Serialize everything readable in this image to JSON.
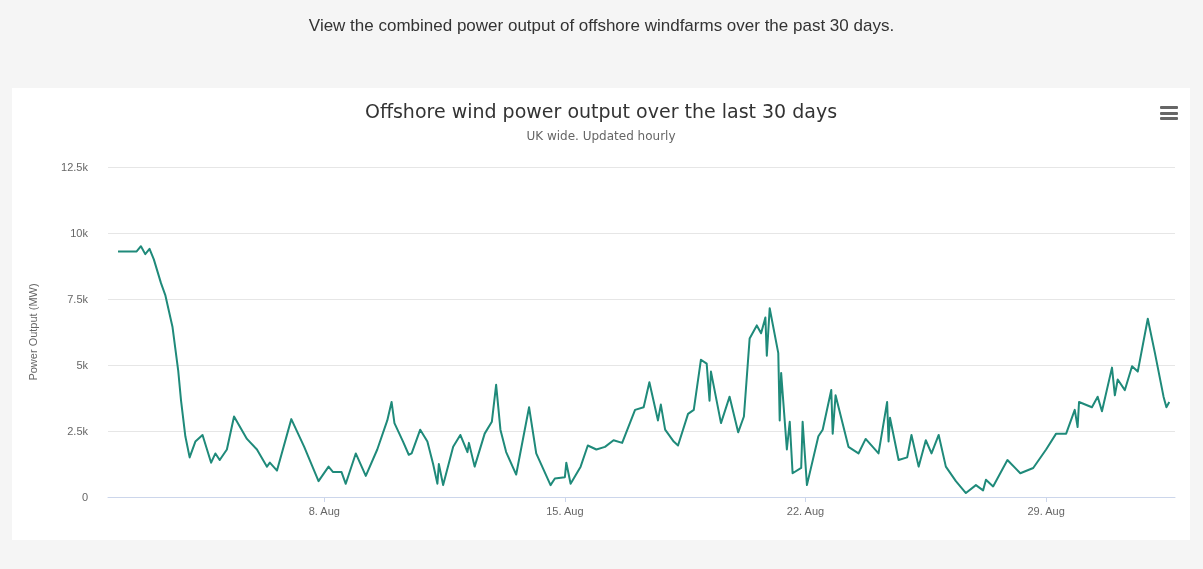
{
  "chart_data": {
    "type": "line",
    "title": "Offshore wind power output over the last 30 days",
    "subtitle": "UK wide. Updated hourly",
    "ylabel": "Power Output (MW)",
    "annotations": [
      "View the combined power output of offshore windfarms over the past 30 days."
    ],
    "xlim": [
      "--08-01T17:00",
      "--09-01T18:00"
    ],
    "xticks": [
      {
        "value": "--08-08",
        "label": "8. Aug"
      },
      {
        "value": "--08-15",
        "label": "15. Aug"
      },
      {
        "value": "--08-22",
        "label": "22. Aug"
      },
      {
        "value": "--08-29",
        "label": "29. Aug"
      }
    ],
    "ylim": [
      0,
      12500
    ],
    "yticks": [
      0,
      {
        "value": 2500,
        "label": "2.5k"
      },
      {
        "value": 5000,
        "label": "5k"
      },
      {
        "value": 7500,
        "label": "7.5k"
      },
      {
        "value": 10000,
        "label": "10k"
      },
      {
        "value": 12500,
        "label": "12.5k"
      }
    ],
    "grid": "y",
    "marker": "none",
    "line_style": "solid",
    "x": [
      "--08-02T00:00",
      "--08-02T13:00",
      "--08-02T16:00",
      "--08-02T19:00",
      "--08-02T22:00",
      "--08-03T01:00",
      "--08-03T06:00",
      "--08-03T09:00",
      "--08-03T14:00",
      "--08-03T18:00",
      "--08-03T20:00",
      "--08-03T23:00",
      "--08-04T02:00",
      "--08-04T06:00",
      "--08-04T11:00",
      "--08-04T17:00",
      "--08-04T20:00",
      "--08-04T23:00",
      "--08-05T04:00",
      "--08-05T09:00",
      "--08-05T18:00",
      "--08-06T01:00",
      "--08-06T08:00",
      "--08-06T10:00",
      "--08-06T15:00",
      "--08-07T01:00",
      "--08-07T10:00",
      "--08-07T20:00",
      "--08-08T03:00",
      "--08-08T06:00",
      "--08-08T12:00",
      "--08-08T15:00",
      "--08-08T22:00",
      "--08-09T05:00",
      "--08-09T13:00",
      "--08-09T20:00",
      "--08-09T23:00",
      "--08-10T01:00",
      "--08-10T07:00",
      "--08-10T11:00",
      "--08-10T13:00",
      "--08-10T19:00",
      "--08-11T00:00",
      "--08-11T04:00",
      "--08-11T07:00",
      "--08-11T08:00",
      "--08-11T11:00",
      "--08-11T18:00",
      "--08-11T23:00",
      "--08-12T04:00",
      "--08-12T05:00",
      "--08-12T09:00",
      "--08-12T16:00",
      "--08-12T21:00",
      "--08-13T00:00",
      "--08-13T03:00",
      "--08-13T07:00",
      "--08-13T14:00",
      "--08-13T23:00",
      "--08-14T04:00",
      "--08-14T14:00",
      "--08-14T17:00",
      "--08-15T00:00",
      "--08-15T01:00",
      "--08-15T04:00",
      "--08-15T11:00",
      "--08-15T16:00",
      "--08-15T22:00",
      "--08-16T04:00",
      "--08-16T10:00",
      "--08-16T16:00",
      "--08-17T01:00",
      "--08-17T07:00",
      "--08-17T11:00",
      "--08-17T17:00",
      "--08-17T19:00",
      "--08-17T22:00",
      "--08-18T04:00",
      "--08-18T07:00",
      "--08-18T14:00",
      "--08-18T18:00",
      "--08-18T23:00",
      "--08-19T03:00",
      "--08-19T05:00",
      "--08-19T06:00",
      "--08-19T13:00",
      "--08-19T19:00",
      "--08-20T01:00",
      "--08-20T05:00",
      "--08-20T09:00",
      "--08-20T14:00",
      "--08-20T17:00",
      "--08-20T20:00",
      "--08-20T21:00",
      "--08-20T23:00",
      "--08-21T05:00",
      "--08-21T06:00",
      "--08-21T07:00",
      "--08-21T11:00",
      "--08-21T13:00",
      "--08-21T15:00",
      "--08-21T21:00",
      "--08-21T22:00",
      "--08-22T01:00",
      "--08-22T09:00",
      "--08-22T12:00",
      "--08-22T18:00",
      "--08-22T19:00",
      "--08-22T21:00",
      "--08-23T06:00",
      "--08-23T13:00",
      "--08-23T18:00",
      "--08-24T03:00",
      "--08-24T09:00",
      "--08-24T10:00",
      "--08-24T11:00",
      "--08-24T17:00",
      "--08-24T23:00",
      "--08-25T02:00",
      "--08-25T07:00",
      "--08-25T12:00",
      "--08-25T16:00",
      "--08-25T21:00",
      "--08-26T02:00",
      "--08-26T09:00",
      "--08-26T16:00",
      "--08-26T23:00",
      "--08-27T04:00",
      "--08-27T06:00",
      "--08-27T11:00",
      "--08-27T21:00",
      "--08-28T06:00",
      "--08-28T15:00",
      "--08-29T00:00",
      "--08-29T07:00",
      "--08-29T14:00",
      "--08-29T20:00",
      "--08-29T22:00",
      "--08-29T23:00",
      "--08-30T08:00",
      "--08-30T12:00",
      "--08-30T15:00",
      "--08-30T22:00",
      "--08-31T00:00",
      "--08-31T02:00",
      "--08-31T07:00",
      "--08-31T12:00",
      "--08-31T16:00",
      "--08-31T23:00",
      "--09-01T04:00",
      "--09-01T10:00",
      "--09-01T12:00",
      "--09-01T14:00"
    ],
    "series": [
      {
        "color": "#1f8a7a",
        "values": [
          9300,
          9300,
          9500,
          9200,
          9400,
          9000,
          8100,
          7650,
          6450,
          4800,
          3650,
          2300,
          1500,
          2100,
          2350,
          1300,
          1650,
          1400,
          1800,
          3050,
          2200,
          1800,
          1150,
          1300,
          1000,
          2950,
          1900,
          600,
          1150,
          950,
          950,
          500,
          1650,
          800,
          1800,
          2900,
          3600,
          2800,
          2100,
          1600,
          1650,
          2550,
          2100,
          1250,
          500,
          1250,
          450,
          1900,
          2350,
          1700,
          2050,
          1150,
          2400,
          2850,
          4250,
          2550,
          1700,
          850,
          3400,
          1650,
          450,
          700,
          750,
          1300,
          500,
          1150,
          1950,
          1800,
          1900,
          2150,
          2050,
          3300,
          3400,
          4350,
          2900,
          3500,
          2550,
          2100,
          1950,
          3150,
          3300,
          5200,
          5050,
          3650,
          4750,
          2800,
          3800,
          2450,
          3050,
          6000,
          6500,
          6200,
          6800,
          5350,
          7150,
          5450,
          2900,
          4700,
          1800,
          2850,
          900,
          1100,
          2850,
          450,
          2300,
          2550,
          4050,
          2400,
          3850,
          1900,
          1650,
          2200,
          1650,
          3600,
          2100,
          3000,
          1400,
          1500,
          2350,
          1150,
          2150,
          1650,
          2350,
          1150,
          600,
          150,
          450,
          250,
          650,
          400,
          1400,
          900,
          1100,
          1800,
          2400,
          2400,
          3300,
          2650,
          3600,
          3400,
          3800,
          3250,
          4900,
          3850,
          4450,
          4050,
          4950,
          4750,
          6750,
          5450,
          3800,
          3400,
          3600
        ]
      }
    ]
  }
}
